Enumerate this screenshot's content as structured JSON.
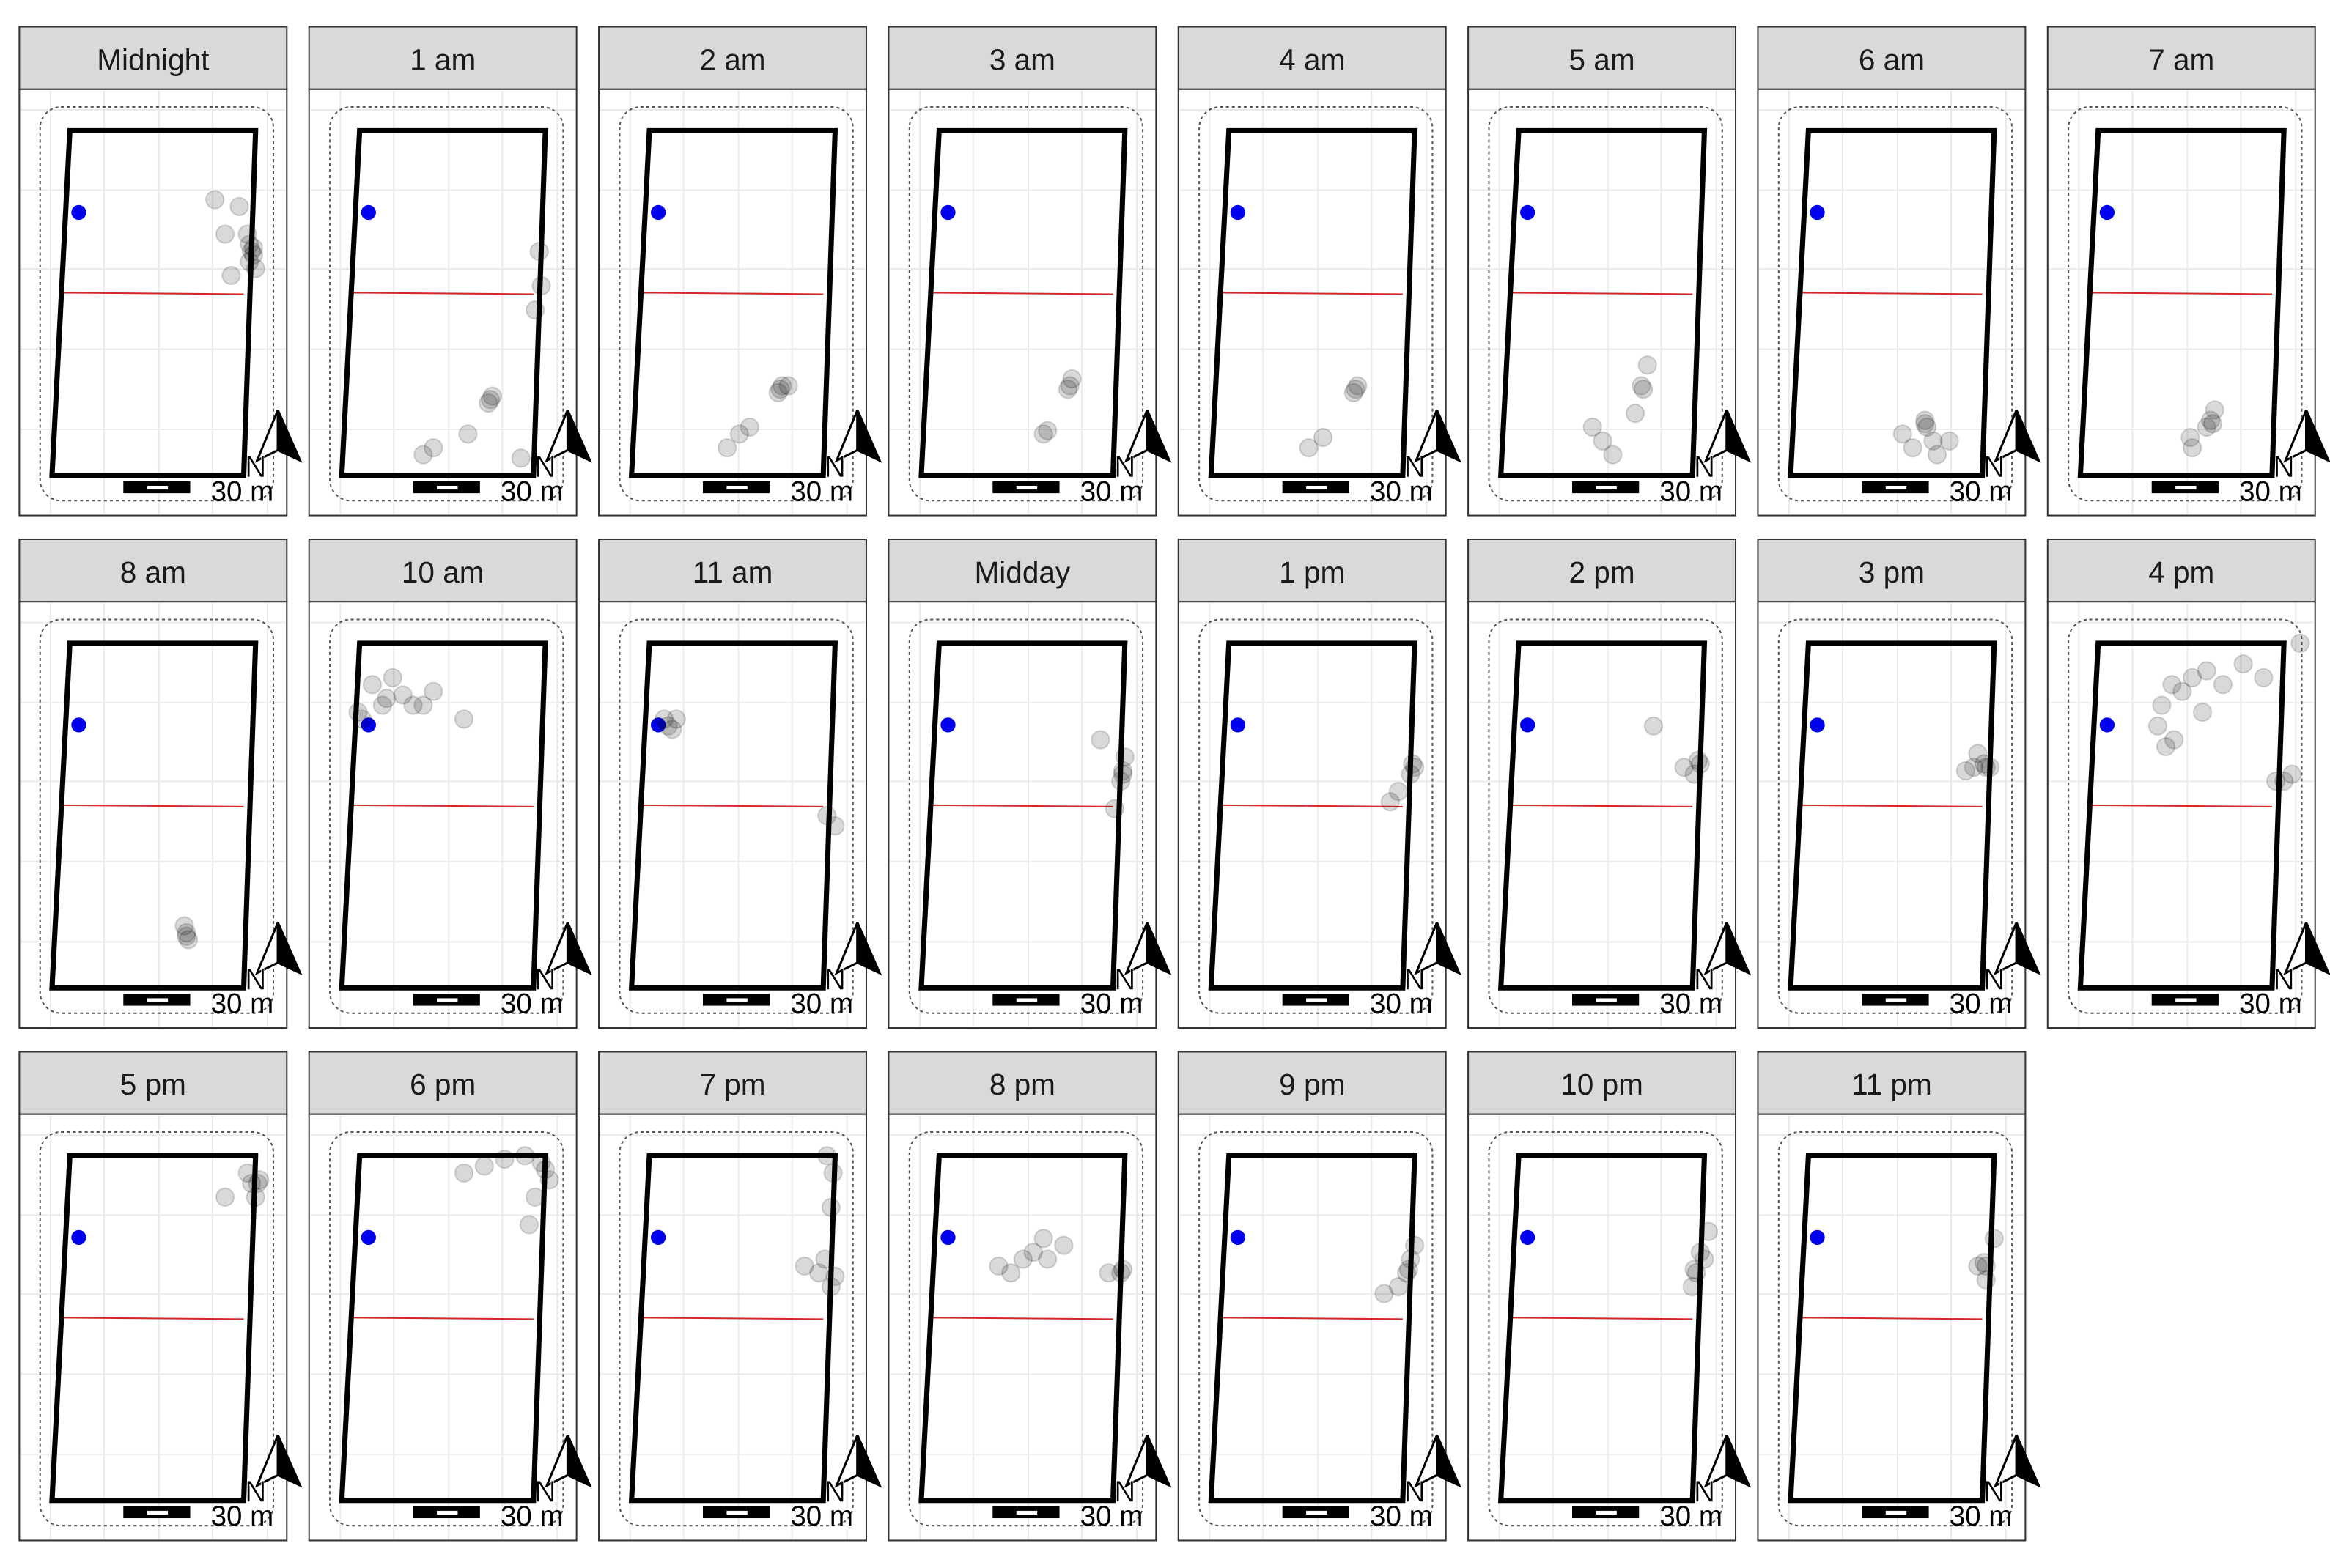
{
  "scale_label": "30 m",
  "north_label": "N",
  "panels": [
    {
      "title": "Midnight",
      "points": [
        [
          98,
          35
        ],
        [
          99,
          36
        ],
        [
          97,
          33
        ],
        [
          96,
          30
        ],
        [
          92,
          22
        ],
        [
          97,
          38
        ],
        [
          100,
          40
        ],
        [
          85,
          30
        ],
        [
          80,
          20
        ],
        [
          88,
          42
        ],
        [
          99,
          34
        ]
      ]
    },
    {
      "title": "1 am",
      "points": [
        [
          73,
          78
        ],
        [
          74,
          77
        ],
        [
          72,
          79
        ],
        [
          97,
          35
        ],
        [
          95,
          52
        ],
        [
          98,
          45
        ],
        [
          62,
          88
        ],
        [
          45,
          92
        ],
        [
          40,
          94
        ],
        [
          88,
          95
        ]
      ]
    },
    {
      "title": "2 am",
      "points": [
        [
          73,
          75
        ],
        [
          74,
          74
        ],
        [
          72,
          76
        ],
        [
          77,
          74
        ],
        [
          58,
          86
        ],
        [
          47,
          92
        ],
        [
          53,
          88
        ]
      ]
    },
    {
      "title": "3 am",
      "points": [
        [
          73,
          74
        ],
        [
          74,
          72
        ],
        [
          72,
          75
        ],
        [
          60,
          88
        ],
        [
          62,
          87
        ]
      ]
    },
    {
      "title": "4 am",
      "points": [
        [
          71,
          75
        ],
        [
          70,
          76
        ],
        [
          72,
          74
        ],
        [
          55,
          89
        ],
        [
          48,
          92
        ]
      ]
    },
    {
      "title": "5 am",
      "points": [
        [
          69,
          74
        ],
        [
          70,
          75
        ],
        [
          72,
          68
        ],
        [
          66,
          82
        ],
        [
          50,
          90
        ],
        [
          55,
          94
        ],
        [
          45,
          86
        ]
      ]
    },
    {
      "title": "6 am",
      "points": [
        [
          66,
          85
        ],
        [
          66,
          84
        ],
        [
          67,
          86
        ],
        [
          55,
          88
        ],
        [
          70,
          90
        ],
        [
          78,
          90
        ],
        [
          60,
          92
        ],
        [
          72,
          94
        ]
      ]
    },
    {
      "title": "7 am",
      "points": [
        [
          64,
          84
        ],
        [
          62,
          86
        ],
        [
          66,
          81
        ],
        [
          65,
          85
        ],
        [
          55,
          92
        ],
        [
          54,
          89
        ]
      ]
    },
    {
      "title": "8 am",
      "points": [
        [
          66,
          84
        ],
        [
          65,
          82
        ],
        [
          67,
          86
        ],
        [
          66,
          85
        ]
      ]
    },
    {
      "title": "10 am",
      "points": [
        [
          22,
          16
        ],
        [
          15,
          12
        ],
        [
          25,
          10
        ],
        [
          30,
          15
        ],
        [
          35,
          18
        ],
        [
          20,
          18
        ],
        [
          10,
          22
        ],
        [
          8,
          20
        ],
        [
          40,
          18
        ],
        [
          60,
          22
        ],
        [
          45,
          14
        ]
      ]
    },
    {
      "title": "11 am",
      "points": [
        [
          20,
          25
        ],
        [
          18,
          24
        ],
        [
          22,
          22
        ],
        [
          16,
          22
        ],
        [
          100,
          53
        ],
        [
          96,
          50
        ]
      ]
    },
    {
      "title": "Midday",
      "points": [
        [
          99,
          37
        ],
        [
          100,
          33
        ],
        [
          98,
          40
        ],
        [
          95,
          48
        ],
        [
          88,
          28
        ],
        [
          99,
          38
        ]
      ]
    },
    {
      "title": "1 pm",
      "points": [
        [
          100,
          36
        ],
        [
          99,
          35
        ],
        [
          98,
          38
        ],
        [
          92,
          43
        ],
        [
          88,
          46
        ]
      ]
    },
    {
      "title": "2 pm",
      "points": [
        [
          97,
          34
        ],
        [
          98,
          35
        ],
        [
          95,
          38
        ],
        [
          90,
          36
        ],
        [
          75,
          24
        ]
      ]
    },
    {
      "title": "3 pm",
      "points": [
        [
          95,
          35
        ],
        [
          96,
          36
        ],
        [
          90,
          36
        ],
        [
          98,
          36
        ],
        [
          86,
          37
        ],
        [
          92,
          32
        ]
      ]
    },
    {
      "title": "4 pm",
      "points": [
        [
          50,
          14
        ],
        [
          45,
          12
        ],
        [
          40,
          18
        ],
        [
          38,
          24
        ],
        [
          42,
          30
        ],
        [
          46,
          28
        ],
        [
          55,
          10
        ],
        [
          62,
          8
        ],
        [
          70,
          12
        ],
        [
          80,
          6
        ],
        [
          90,
          10
        ],
        [
          108,
          0
        ],
        [
          104,
          38
        ],
        [
          100,
          40
        ],
        [
          96,
          40
        ],
        [
          60,
          20
        ]
      ]
    },
    {
      "title": "5 pm",
      "points": [
        [
          102,
          7
        ],
        [
          101,
          8
        ],
        [
          98,
          8
        ],
        [
          96,
          5
        ],
        [
          85,
          12
        ],
        [
          100,
          12
        ]
      ]
    },
    {
      "title": "6 pm",
      "points": [
        [
          102,
          7
        ],
        [
          98,
          2
        ],
        [
          90,
          0
        ],
        [
          80,
          1
        ],
        [
          70,
          3
        ],
        [
          60,
          5
        ],
        [
          95,
          12
        ],
        [
          92,
          20
        ],
        [
          100,
          4
        ]
      ]
    },
    {
      "title": "7 pm",
      "points": [
        [
          99,
          5
        ],
        [
          96,
          0
        ],
        [
          98,
          15
        ],
        [
          95,
          30
        ],
        [
          100,
          35
        ],
        [
          92,
          34
        ],
        [
          85,
          32
        ],
        [
          98,
          38
        ]
      ]
    },
    {
      "title": "8 pm",
      "points": [
        [
          99,
          33
        ],
        [
          98,
          34
        ],
        [
          92,
          34
        ],
        [
          60,
          24
        ],
        [
          55,
          28
        ],
        [
          50,
          30
        ],
        [
          44,
          34
        ],
        [
          38,
          32
        ],
        [
          62,
          30
        ],
        [
          70,
          26
        ]
      ]
    },
    {
      "title": "9 pm",
      "points": [
        [
          96,
          34
        ],
        [
          97,
          33
        ],
        [
          98,
          30
        ],
        [
          92,
          38
        ],
        [
          85,
          40
        ],
        [
          100,
          26
        ]
      ]
    },
    {
      "title": "10 pm",
      "points": [
        [
          95,
          33
        ],
        [
          96,
          34
        ],
        [
          98,
          28
        ],
        [
          102,
          22
        ],
        [
          94,
          38
        ],
        [
          100,
          30
        ]
      ]
    },
    {
      "title": "11 pm",
      "points": [
        [
          95,
          31
        ],
        [
          96,
          32
        ],
        [
          100,
          24
        ],
        [
          96,
          36
        ],
        [
          92,
          32
        ]
      ]
    }
  ]
}
